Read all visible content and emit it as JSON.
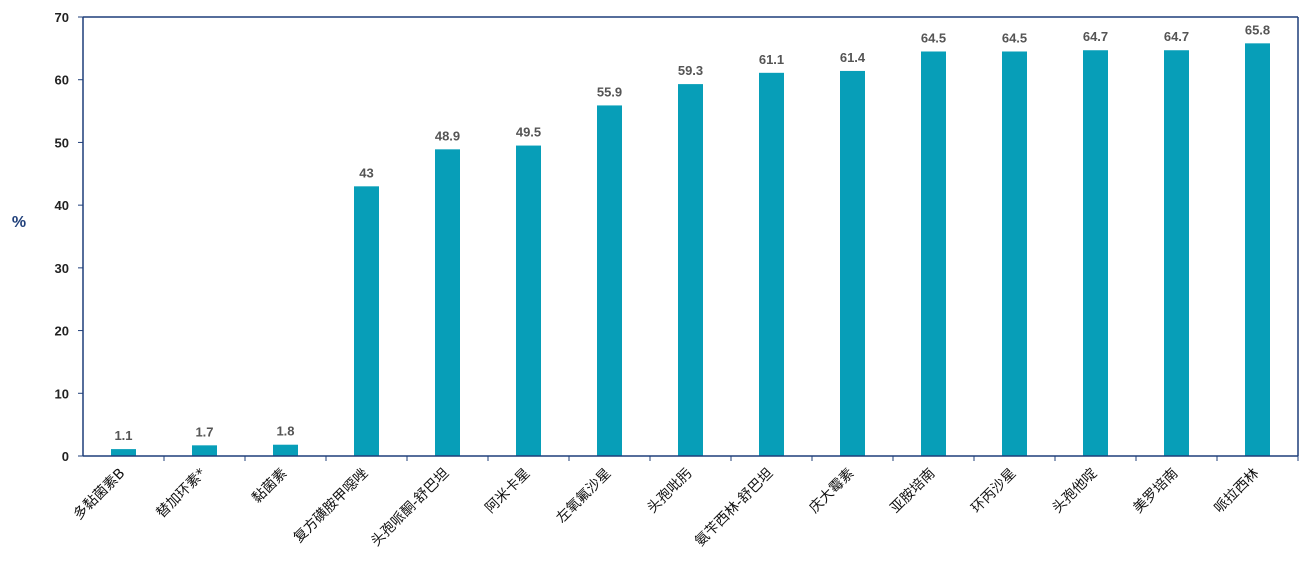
{
  "chart_data": {
    "type": "bar",
    "categories": [
      "多黏菌素B",
      "替加环素*",
      "黏菌素",
      "复方磺胺甲噁唑",
      "头孢哌酮-舒巴坦",
      "阿米卡星",
      "左氧氟沙星",
      "头孢吡肟",
      "氨苄西林-舒巴坦",
      "庆大霉素",
      "亚胺培南",
      "环丙沙星",
      "头孢他啶",
      "美罗培南",
      "哌拉西林"
    ],
    "values": [
      1.1,
      1.7,
      1.8,
      43,
      48.9,
      49.5,
      55.9,
      59.3,
      61.1,
      61.4,
      64.5,
      64.5,
      64.7,
      64.7,
      65.8
    ],
    "value_labels": [
      "1.1",
      "1.7",
      "1.8",
      "43",
      "48.9",
      "49.5",
      "55.9",
      "59.3",
      "61.1",
      "61.4",
      "64.5",
      "64.5",
      "64.7",
      "64.7",
      "65.8"
    ],
    "ylabel": "%",
    "ylim": [
      0,
      70
    ],
    "yticks": [
      "0",
      "10",
      "20",
      "30",
      "40",
      "50",
      "60",
      "70"
    ],
    "grid": false,
    "colors": {
      "bar": "#079eb8",
      "axis": "#1f3f7a"
    }
  }
}
